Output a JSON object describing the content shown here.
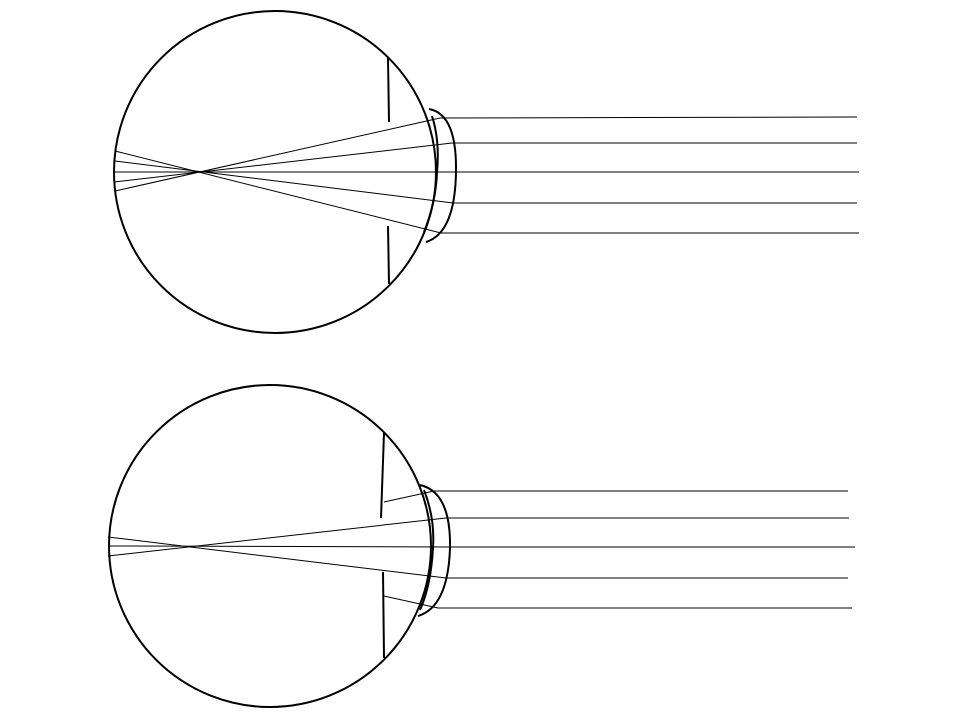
{
  "diagram": {
    "panels": [
      {
        "id": "top",
        "rays": 5,
        "rays_focus_inside_eye": true
      },
      {
        "id": "bottom",
        "rays": 5,
        "outer_rays_blocked_by_iris": true
      }
    ],
    "colors": {
      "background": "#ffffff",
      "line": "#000000"
    }
  }
}
